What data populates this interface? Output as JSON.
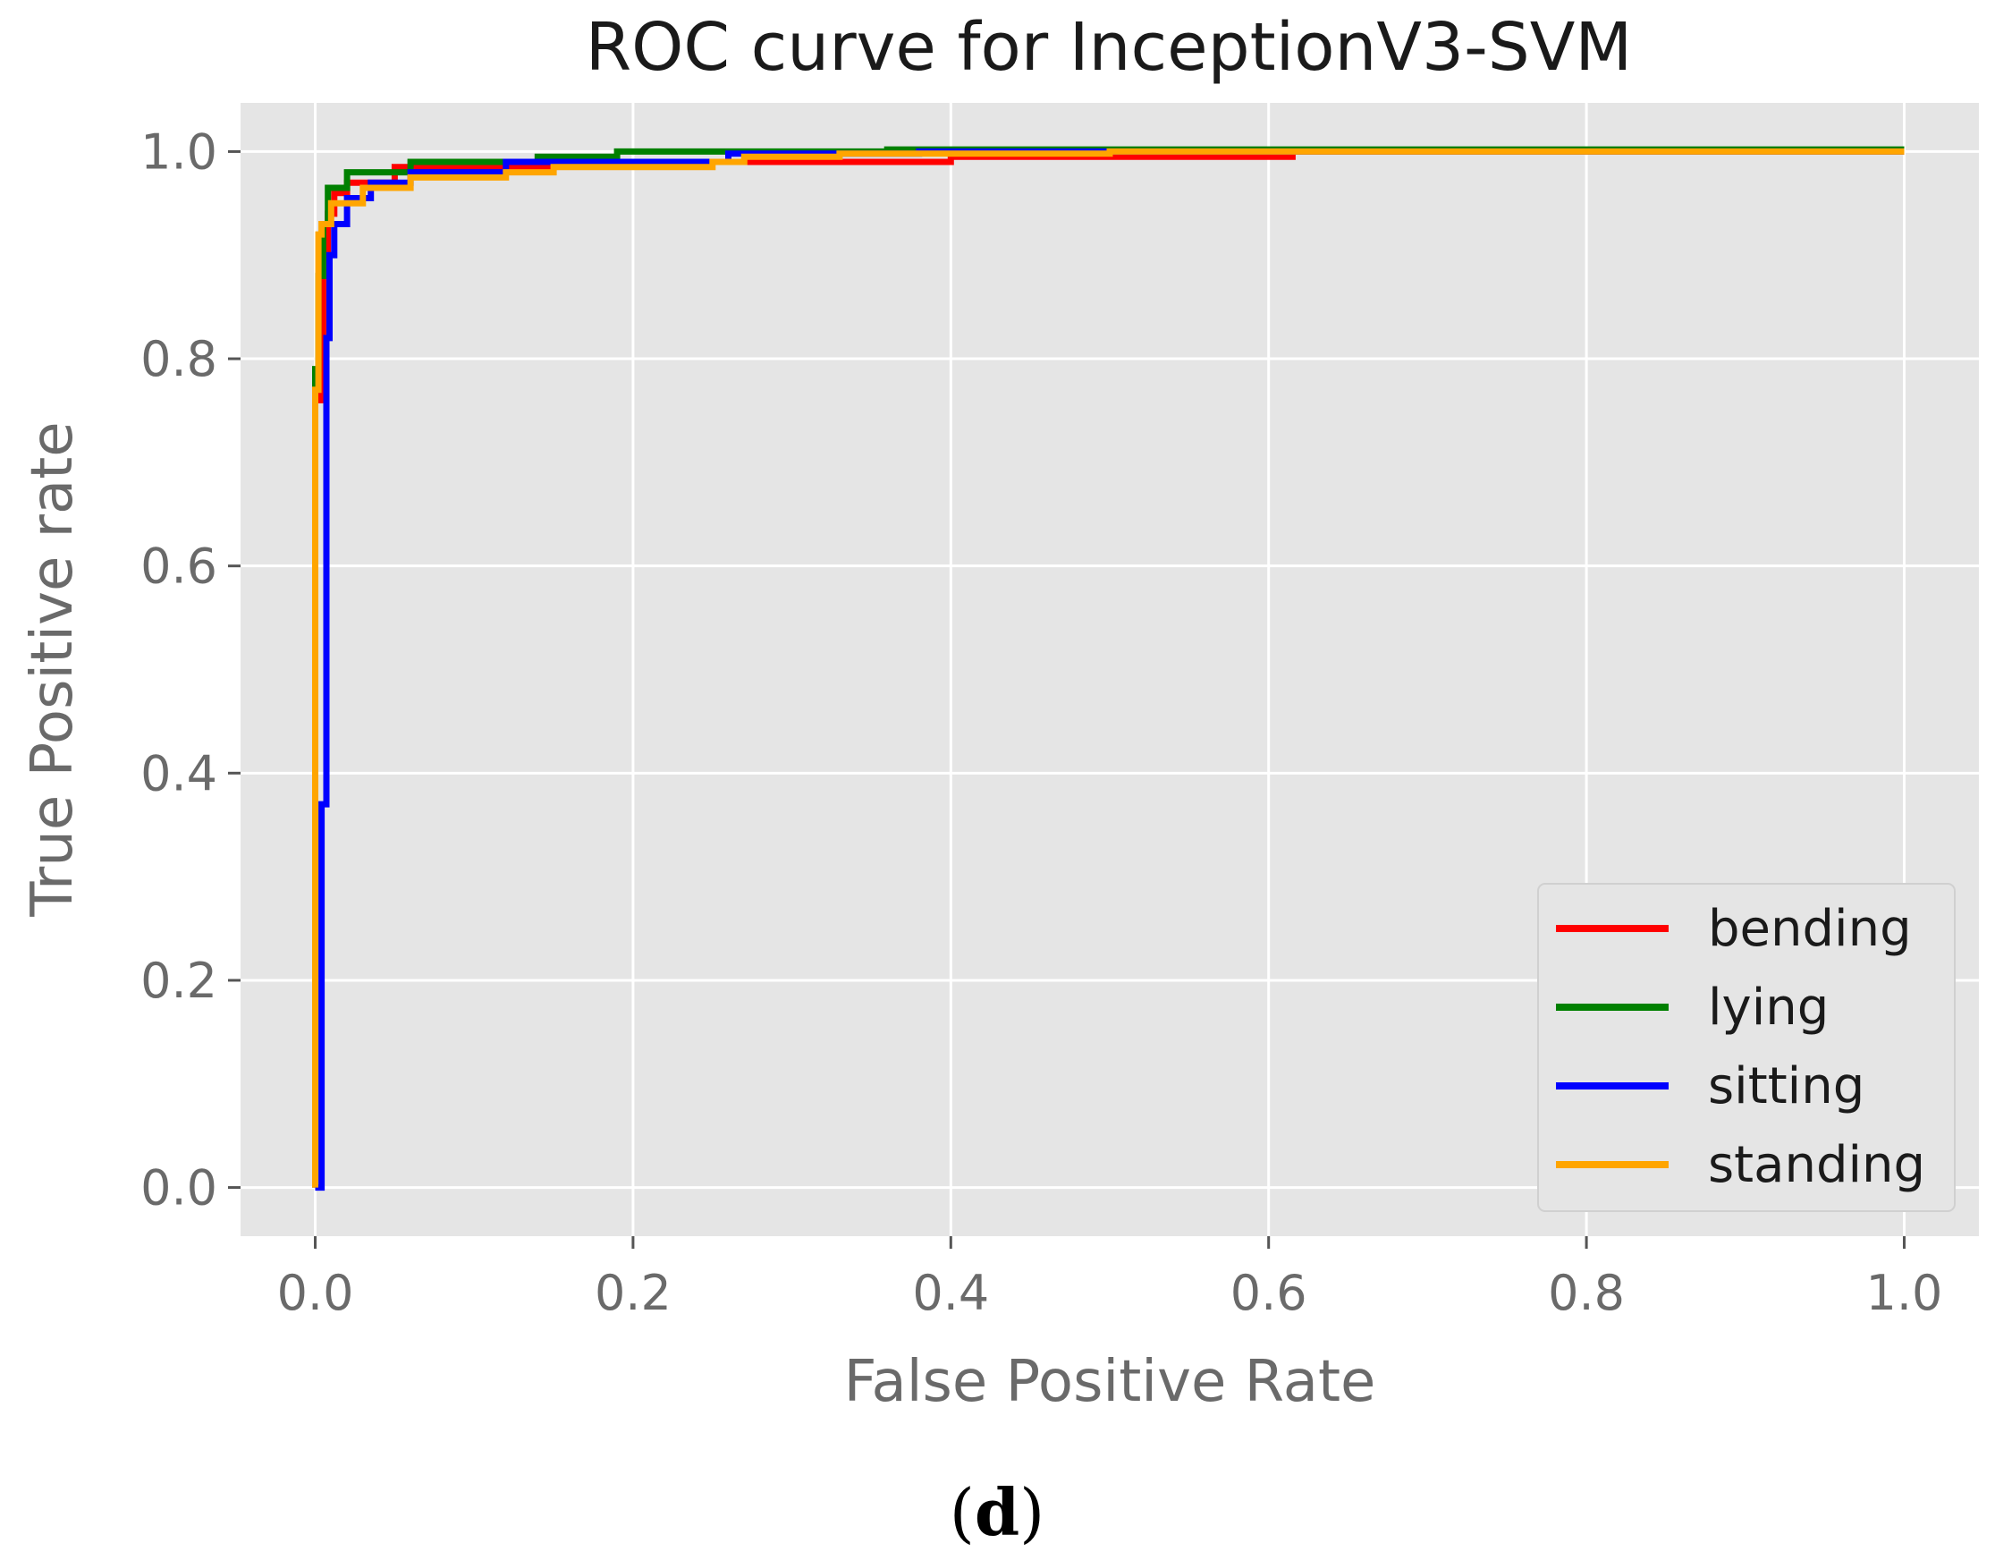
{
  "chart_data": {
    "type": "line",
    "title": "ROC curve for InceptionV3-SVM",
    "xlabel": "False Positive Rate",
    "ylabel": "True Positive rate",
    "xlim": [
      -0.047,
      1.047
    ],
    "ylim": [
      -0.047,
      1.047
    ],
    "xticks": [
      0.0,
      0.2,
      0.4,
      0.6,
      0.8,
      1.0
    ],
    "yticks": [
      0.0,
      0.2,
      0.4,
      0.6,
      0.8,
      1.0
    ],
    "xtick_labels": [
      "0.0",
      "0.2",
      "0.4",
      "0.6",
      "0.8",
      "1.0"
    ],
    "ytick_labels": [
      "0.0",
      "0.2",
      "0.4",
      "0.6",
      "0.8",
      "1.0"
    ],
    "grid": true,
    "legend_position": "lower-right",
    "series": [
      {
        "name": "bending",
        "color": "#ff0000",
        "x": [
          0.0,
          0.0,
          0.002,
          0.002,
          0.005,
          0.005,
          0.008,
          0.008,
          0.012,
          0.012,
          0.02,
          0.02,
          0.05,
          0.05,
          0.15,
          0.15,
          0.4,
          0.4,
          0.615,
          0.615,
          1.0
        ],
        "y": [
          0.0,
          0.78,
          0.78,
          0.76,
          0.76,
          0.9,
          0.9,
          0.94,
          0.94,
          0.96,
          0.96,
          0.97,
          0.97,
          0.985,
          0.985,
          0.99,
          0.99,
          0.995,
          0.995,
          1.0,
          1.0
        ]
      },
      {
        "name": "lying",
        "color": "#008000",
        "x": [
          0.0,
          0.0,
          0.002,
          0.002,
          0.005,
          0.005,
          0.008,
          0.008,
          0.02,
          0.02,
          0.06,
          0.06,
          0.14,
          0.14,
          0.19,
          0.19,
          0.36,
          0.36,
          1.0
        ],
        "y": [
          0.0,
          0.79,
          0.79,
          0.88,
          0.88,
          0.93,
          0.93,
          0.965,
          0.965,
          0.98,
          0.98,
          0.99,
          0.99,
          0.995,
          0.995,
          1.0,
          1.0,
          1.002,
          1.002
        ]
      },
      {
        "name": "sitting",
        "color": "#0000ff",
        "x": [
          0.0,
          0.004,
          0.004,
          0.007,
          0.007,
          0.009,
          0.009,
          0.012,
          0.012,
          0.02,
          0.02,
          0.035,
          0.035,
          0.06,
          0.06,
          0.12,
          0.12,
          0.26,
          0.26,
          0.38,
          0.38,
          1.0
        ],
        "y": [
          0.0,
          0.0,
          0.37,
          0.37,
          0.82,
          0.82,
          0.9,
          0.9,
          0.93,
          0.93,
          0.955,
          0.955,
          0.97,
          0.97,
          0.98,
          0.98,
          0.99,
          0.99,
          0.998,
          0.998,
          1.0,
          1.0
        ]
      },
      {
        "name": "standing",
        "color": "#ffa500",
        "x": [
          0.0,
          0.0,
          0.002,
          0.002,
          0.004,
          0.004,
          0.01,
          0.01,
          0.03,
          0.03,
          0.06,
          0.06,
          0.12,
          0.12,
          0.15,
          0.15,
          0.25,
          0.25,
          0.27,
          0.27,
          0.33,
          0.33,
          0.5,
          0.5,
          1.0
        ],
        "y": [
          0.0,
          0.77,
          0.77,
          0.92,
          0.92,
          0.93,
          0.93,
          0.95,
          0.95,
          0.965,
          0.965,
          0.975,
          0.975,
          0.98,
          0.98,
          0.985,
          0.985,
          0.99,
          0.99,
          0.995,
          0.995,
          0.998,
          0.998,
          1.0,
          1.0
        ]
      }
    ]
  },
  "caption": {
    "open": "(",
    "letter": "d",
    "close": ")"
  }
}
